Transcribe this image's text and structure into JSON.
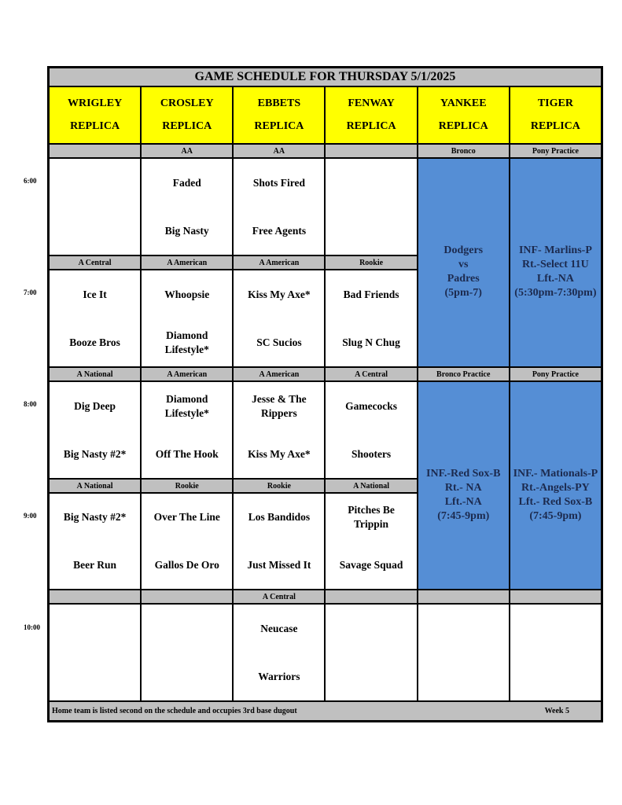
{
  "title": "GAME SCHEDULE FOR THURSDAY 5/1/2025",
  "fields": [
    [
      "WRIGLEY",
      "REPLICA"
    ],
    [
      "CROSLEY",
      "REPLICA"
    ],
    [
      "EBBETS",
      "REPLICA"
    ],
    [
      "FENWAY",
      "REPLICA"
    ],
    [
      "YANKEE",
      "REPLICA"
    ],
    [
      "TIGER",
      "REPLICA"
    ]
  ],
  "times": [
    "6:00",
    "7:00",
    "8:00",
    "9:00",
    "10:00"
  ],
  "slots": [
    {
      "labels": [
        "",
        "AA",
        "AA",
        "",
        "Bronco",
        "Pony Practice"
      ],
      "games": [
        null,
        [
          "Faded",
          "Big Nasty"
        ],
        [
          "Shots Fired",
          "Free Agents"
        ],
        null
      ]
    },
    {
      "labels": [
        "A Central",
        "A American",
        "A American",
        "Rookie"
      ],
      "games": [
        [
          "Ice It",
          "Booze Bros"
        ],
        [
          "Whoopsie",
          "Diamond Lifestyle*"
        ],
        [
          "Kiss My Axe*",
          "SC Sucios"
        ],
        [
          "Bad Friends",
          "Slug N Chug"
        ]
      ]
    },
    {
      "labels": [
        "A National",
        "A American",
        "A American",
        "A Central",
        "Bronco Practice",
        "Pony Practice"
      ],
      "games": [
        [
          "Dig Deep",
          "Big Nasty #2*"
        ],
        [
          "Diamond Lifestyle*",
          "Off The Hook"
        ],
        [
          "Jesse & The Rippers",
          "Kiss My Axe*"
        ],
        [
          "Gamecocks",
          "Shooters"
        ]
      ]
    },
    {
      "labels": [
        "A National",
        "Rookie",
        "Rookie",
        "A National"
      ],
      "games": [
        [
          "Big Nasty #2*",
          "Beer Run"
        ],
        [
          "Over The Line",
          "Gallos De Oro"
        ],
        [
          "Los Bandidos",
          "Just Missed It"
        ],
        [
          "Pitches Be Trippin",
          "Savage Squad"
        ]
      ]
    },
    {
      "labels": [
        "",
        "",
        "A Central",
        "",
        "",
        ""
      ],
      "games": [
        null,
        null,
        [
          "Neucase",
          "Warriors"
        ],
        null,
        null,
        null
      ]
    }
  ],
  "blue_blocks": [
    {
      "yankee": [
        "Dodgers",
        "vs",
        "Padres",
        "(5pm-7)"
      ],
      "tiger": [
        "INF- Marlins-P",
        "Rt.-Select 11U",
        "Lft.-NA",
        "(5:30pm-7:30pm)"
      ]
    },
    {
      "yankee": [
        "INF.-Red Sox-B",
        "Rt.- NA",
        "Lft.-NA",
        "(7:45-9pm)"
      ],
      "tiger": [
        "INF.- Mationals-P",
        "Rt.-Angels-PY",
        "Lft.- Red Sox-B",
        "(7:45-9pm)"
      ]
    }
  ],
  "footer": {
    "note": "Home team is listed second on the schedule and occupies 3rd base dugout",
    "week": "Week 5"
  },
  "colors": {
    "header": "#ffff00",
    "label": "#c0c0c0",
    "practice": "#558ed5"
  }
}
